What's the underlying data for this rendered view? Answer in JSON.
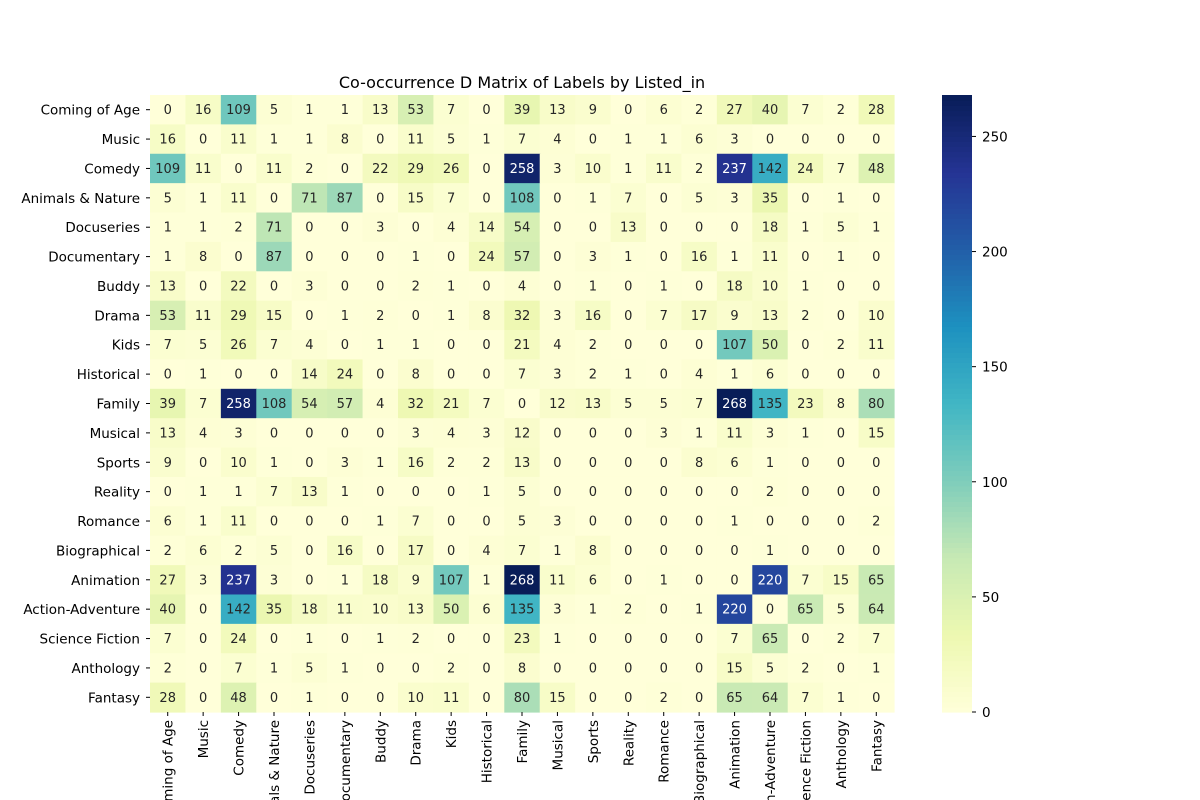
{
  "chart_data": {
    "type": "heatmap",
    "title": "Co-occurrence D Matrix of Labels by Listed_in",
    "row_labels": [
      "Coming of Age",
      "Music",
      "Comedy",
      "Animals & Nature",
      "Docuseries",
      "Documentary",
      "Buddy",
      "Drama",
      "Kids",
      "Historical",
      "Family",
      "Musical",
      "Sports",
      "Reality",
      "Romance",
      "Biographical",
      "Animation",
      "Action-Adventure",
      "Science Fiction",
      "Anthology",
      "Fantasy"
    ],
    "col_labels": [
      "Coming of Age",
      "Music",
      "Comedy",
      "Animals & Nature",
      "Docuseries",
      "Documentary",
      "Buddy",
      "Drama",
      "Kids",
      "Historical",
      "Family",
      "Musical",
      "Sports",
      "Reality",
      "Romance",
      "Biographical",
      "Animation",
      "Action-Adventure",
      "Science Fiction",
      "Anthology",
      "Fantasy"
    ],
    "values": [
      [
        0,
        16,
        109,
        5,
        1,
        1,
        13,
        53,
        7,
        0,
        39,
        13,
        9,
        0,
        6,
        2,
        27,
        40,
        7,
        2,
        28
      ],
      [
        16,
        0,
        11,
        1,
        1,
        8,
        0,
        11,
        5,
        1,
        7,
        4,
        0,
        1,
        1,
        6,
        3,
        0,
        0,
        0,
        0
      ],
      [
        109,
        11,
        0,
        11,
        2,
        0,
        22,
        29,
        26,
        0,
        258,
        3,
        10,
        1,
        11,
        2,
        237,
        142,
        24,
        7,
        48
      ],
      [
        5,
        1,
        11,
        0,
        71,
        87,
        0,
        15,
        7,
        0,
        108,
        0,
        1,
        7,
        0,
        5,
        3,
        35,
        0,
        1,
        0
      ],
      [
        1,
        1,
        2,
        71,
        0,
        0,
        3,
        0,
        4,
        14,
        54,
        0,
        0,
        13,
        0,
        0,
        0,
        18,
        1,
        5,
        1
      ],
      [
        1,
        8,
        0,
        87,
        0,
        0,
        0,
        1,
        0,
        24,
        57,
        0,
        3,
        1,
        0,
        16,
        1,
        11,
        0,
        1,
        0
      ],
      [
        13,
        0,
        22,
        0,
        3,
        0,
        0,
        2,
        1,
        0,
        4,
        0,
        1,
        0,
        1,
        0,
        18,
        10,
        1,
        0,
        0
      ],
      [
        53,
        11,
        29,
        15,
        0,
        1,
        2,
        0,
        1,
        8,
        32,
        3,
        16,
        0,
        7,
        17,
        9,
        13,
        2,
        0,
        10
      ],
      [
        7,
        5,
        26,
        7,
        4,
        0,
        1,
        1,
        0,
        0,
        21,
        4,
        2,
        0,
        0,
        0,
        107,
        50,
        0,
        2,
        11
      ],
      [
        0,
        1,
        0,
        0,
        14,
        24,
        0,
        8,
        0,
        0,
        7,
        3,
        2,
        1,
        0,
        4,
        1,
        6,
        0,
        0,
        0
      ],
      [
        39,
        7,
        258,
        108,
        54,
        57,
        4,
        32,
        21,
        7,
        0,
        12,
        13,
        5,
        5,
        7,
        268,
        135,
        23,
        8,
        80
      ],
      [
        13,
        4,
        3,
        0,
        0,
        0,
        0,
        3,
        4,
        3,
        12,
        0,
        0,
        0,
        3,
        1,
        11,
        3,
        1,
        0,
        15
      ],
      [
        9,
        0,
        10,
        1,
        0,
        3,
        1,
        16,
        2,
        2,
        13,
        0,
        0,
        0,
        0,
        8,
        6,
        1,
        0,
        0,
        0
      ],
      [
        0,
        1,
        1,
        7,
        13,
        1,
        0,
        0,
        0,
        1,
        5,
        0,
        0,
        0,
        0,
        0,
        0,
        2,
        0,
        0,
        0
      ],
      [
        6,
        1,
        11,
        0,
        0,
        0,
        1,
        7,
        0,
        0,
        5,
        3,
        0,
        0,
        0,
        0,
        1,
        0,
        0,
        0,
        2
      ],
      [
        2,
        6,
        2,
        5,
        0,
        16,
        0,
        17,
        0,
        4,
        7,
        1,
        8,
        0,
        0,
        0,
        0,
        1,
        0,
        0,
        0
      ],
      [
        27,
        3,
        237,
        3,
        0,
        1,
        18,
        9,
        107,
        1,
        268,
        11,
        6,
        0,
        1,
        0,
        0,
        220,
        7,
        15,
        65
      ],
      [
        40,
        0,
        142,
        35,
        18,
        11,
        10,
        13,
        50,
        6,
        135,
        3,
        1,
        2,
        0,
        1,
        220,
        0,
        65,
        5,
        64
      ],
      [
        7,
        0,
        24,
        0,
        1,
        0,
        1,
        2,
        0,
        0,
        23,
        1,
        0,
        0,
        0,
        0,
        7,
        65,
        0,
        2,
        7
      ],
      [
        2,
        0,
        7,
        1,
        5,
        1,
        0,
        0,
        2,
        0,
        8,
        0,
        0,
        0,
        0,
        0,
        15,
        5,
        2,
        0,
        1
      ],
      [
        28,
        0,
        48,
        0,
        1,
        0,
        0,
        10,
        11,
        0,
        80,
        15,
        0,
        0,
        2,
        0,
        65,
        64,
        7,
        1,
        0
      ]
    ],
    "value_range": [
      0,
      268
    ],
    "colormap": "YlGnBu",
    "colorbar_ticks": [
      0,
      50,
      100,
      150,
      200,
      250
    ],
    "annotated": true,
    "grid": false
  }
}
